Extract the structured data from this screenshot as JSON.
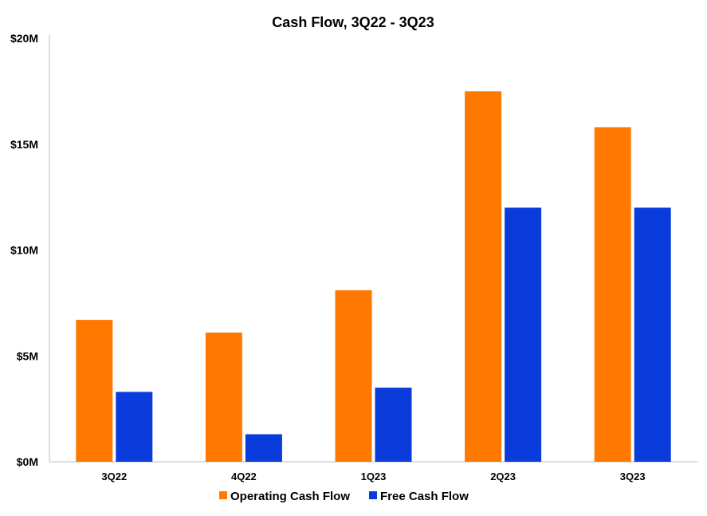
{
  "chart_data": {
    "type": "bar",
    "title": "Cash Flow, 3Q22 - 3Q23",
    "xlabel": "",
    "ylabel": "",
    "categories": [
      "3Q22",
      "4Q22",
      "1Q23",
      "2Q23",
      "3Q23"
    ],
    "series": [
      {
        "name": "Operating Cash Flow",
        "color": "#FF7800",
        "values": [
          6.7,
          6.1,
          8.1,
          17.5,
          15.8
        ]
      },
      {
        "name": "Free Cash Flow",
        "color": "#0A3BDB",
        "values": [
          3.3,
          1.3,
          3.5,
          12.0,
          12.0
        ]
      }
    ],
    "ylim": [
      0,
      20
    ],
    "yticks": [
      0,
      5,
      10,
      15,
      20
    ],
    "ytick_labels": [
      "$0M",
      "$5M",
      "$10M",
      "$15M",
      "$20M"
    ],
    "grid": false,
    "legend": "bottom-center"
  }
}
